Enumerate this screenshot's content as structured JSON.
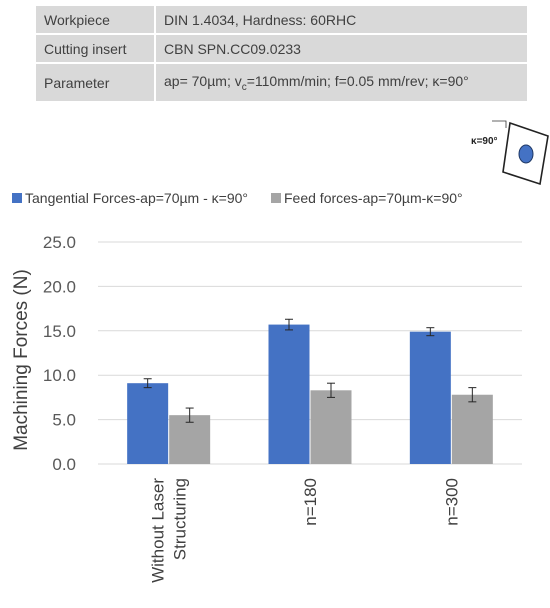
{
  "params": {
    "rows": [
      {
        "key": "Workpiece",
        "value": "DIN 1.4034, Hardness: 60RHC"
      },
      {
        "key": "Cutting insert",
        "value": "CBN SPN.CC09.0233"
      },
      {
        "key": "Parameter",
        "value": "ap= 70µm; vc=110mm/min; f=0.05 mm/rev; κ=90°"
      }
    ]
  },
  "insert_label": "κ=90°",
  "colors": {
    "tangential": "#4472c4",
    "feed": "#a5a5a5",
    "table_bg": "#d9d9d9",
    "insert_fill": "#4472c4"
  },
  "chart_data": {
    "type": "bar",
    "title": "",
    "xlabel": "",
    "ylabel": "Machining Forces (N)",
    "ylim": [
      0,
      25
    ],
    "yticks": [
      "0.0",
      "5.0",
      "10.0",
      "15.0",
      "20.0",
      "25.0"
    ],
    "categories": [
      "Without Laser Structuring",
      "n=180",
      "n=300"
    ],
    "category_lines": [
      [
        "Without Laser",
        "Structuring"
      ],
      [
        "n=180"
      ],
      [
        "n=300"
      ]
    ],
    "series": [
      {
        "name": "Tangential Forces-ap=70µm - κ=90°",
        "values": [
          9.1,
          15.7,
          14.9
        ],
        "errors": [
          0.5,
          0.6,
          0.45
        ]
      },
      {
        "name": "Feed forces-ap=70µm-κ=90°",
        "values": [
          5.5,
          8.3,
          7.8
        ],
        "errors": [
          0.8,
          0.8,
          0.8
        ]
      }
    ],
    "grid": true,
    "legend_position": "top"
  }
}
